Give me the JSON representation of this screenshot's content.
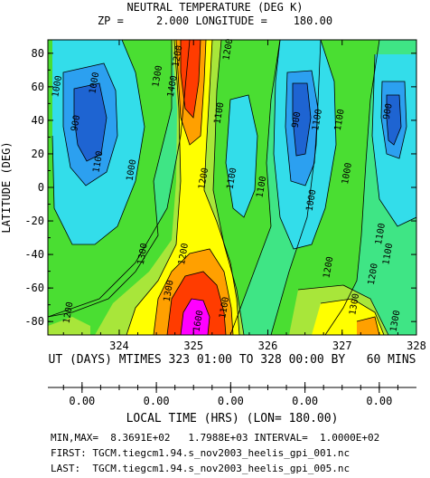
{
  "chart_data": {
    "type": "heatmap",
    "title": "NEUTRAL TEMPERATURE (DEG K)",
    "subtitle": "ZP =     2.000 LONGITUDE =    180.00",
    "ylabel": "LATITUDE (DEG)",
    "xlabel": "UT (DAYS) MTIMES 323 01:00 TO 328 00:00 BY   60 MINS",
    "xlim": [
      323.04,
      328.0
    ],
    "ylim": [
      -88,
      88
    ],
    "x_ticks": [
      "324",
      "325",
      "326",
      "327",
      "328"
    ],
    "y_ticks": [
      "80",
      "60",
      "40",
      "20",
      "0",
      "-20",
      "-40",
      "-60",
      "-80"
    ],
    "contour_levels": [
      900,
      1000,
      1100,
      1200,
      1300,
      1400,
      1500,
      1600
    ],
    "contour_labels": [
      "1000",
      "900",
      "1000",
      "1100",
      "1000",
      "1300",
      "1400",
      "1200",
      "1200",
      "1100",
      "1100",
      "1200",
      "900",
      "1000",
      "1100",
      "1200",
      "1100",
      "1000",
      "1100",
      "1200",
      "900",
      "1100",
      "1300",
      "1200",
      "1300",
      "1300",
      "1100",
      "1600",
      "1100",
      "1300",
      "1200"
    ],
    "colors": [
      "#1e64d2",
      "#2ca0f0",
      "#33ddea",
      "#3fe585",
      "#4ade32",
      "#a8e63a",
      "#ffff00",
      "#ffa000",
      "#ff3c00",
      "#ff00ff"
    ],
    "min": "8.3691E+02",
    "max": "1.7988E+03",
    "interval": "1.0000E+02",
    "lt_axis_label": "LOCAL TIME (HRS) (LON= 180.00)",
    "lt_ticks": [
      "0.00",
      "0.00",
      "0.00",
      "0.00",
      "0.00"
    ]
  },
  "footer": {
    "minmax": "MIN,MAX=  8.3691E+02   1.7988E+03 INTERVAL=  1.0000E+02",
    "first": "FIRST: TGCM.tiegcm1.94.s_nov2003_heelis_gpi_001.nc",
    "last": "LAST:  TGCM.tiegcm1.94.s_nov2003_heelis_gpi_005.nc"
  }
}
